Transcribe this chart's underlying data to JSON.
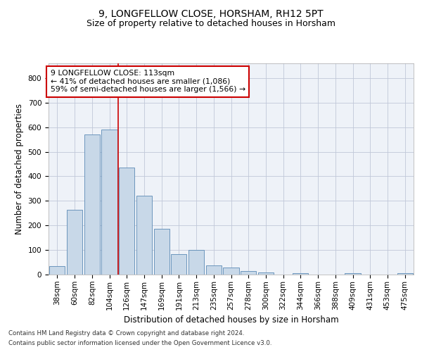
{
  "title1": "9, LONGFELLOW CLOSE, HORSHAM, RH12 5PT",
  "title2": "Size of property relative to detached houses in Horsham",
  "xlabel": "Distribution of detached houses by size in Horsham",
  "ylabel": "Number of detached properties",
  "categories": [
    "38sqm",
    "60sqm",
    "82sqm",
    "104sqm",
    "126sqm",
    "147sqm",
    "169sqm",
    "191sqm",
    "213sqm",
    "235sqm",
    "257sqm",
    "278sqm",
    "300sqm",
    "322sqm",
    "344sqm",
    "366sqm",
    "388sqm",
    "409sqm",
    "431sqm",
    "453sqm",
    "475sqm"
  ],
  "values": [
    35,
    265,
    570,
    590,
    435,
    320,
    185,
    83,
    100,
    38,
    28,
    13,
    10,
    0,
    6,
    0,
    0,
    6,
    0,
    0,
    6
  ],
  "bar_color": "#c8d8e8",
  "bar_edge_color": "#5b8ab5",
  "grid_color": "#c0c8d8",
  "background_color": "#eef2f8",
  "annotation_line1": "9 LONGFELLOW CLOSE: 113sqm",
  "annotation_line2": "← 41% of detached houses are smaller (1,086)",
  "annotation_line3": "59% of semi-detached houses are larger (1,566) →",
  "annotation_box_color": "#ffffff",
  "annotation_box_edge_color": "#cc0000",
  "red_line_x": 3.5,
  "ylim": [
    0,
    860
  ],
  "yticks": [
    0,
    100,
    200,
    300,
    400,
    500,
    600,
    700,
    800
  ],
  "footnote1": "Contains HM Land Registry data © Crown copyright and database right 2024.",
  "footnote2": "Contains public sector information licensed under the Open Government Licence v3.0.",
  "title1_fontsize": 10,
  "title2_fontsize": 9,
  "tick_fontsize": 7.5,
  "label_fontsize": 8.5,
  "annotation_fontsize": 7.8,
  "footnote_fontsize": 6.2
}
